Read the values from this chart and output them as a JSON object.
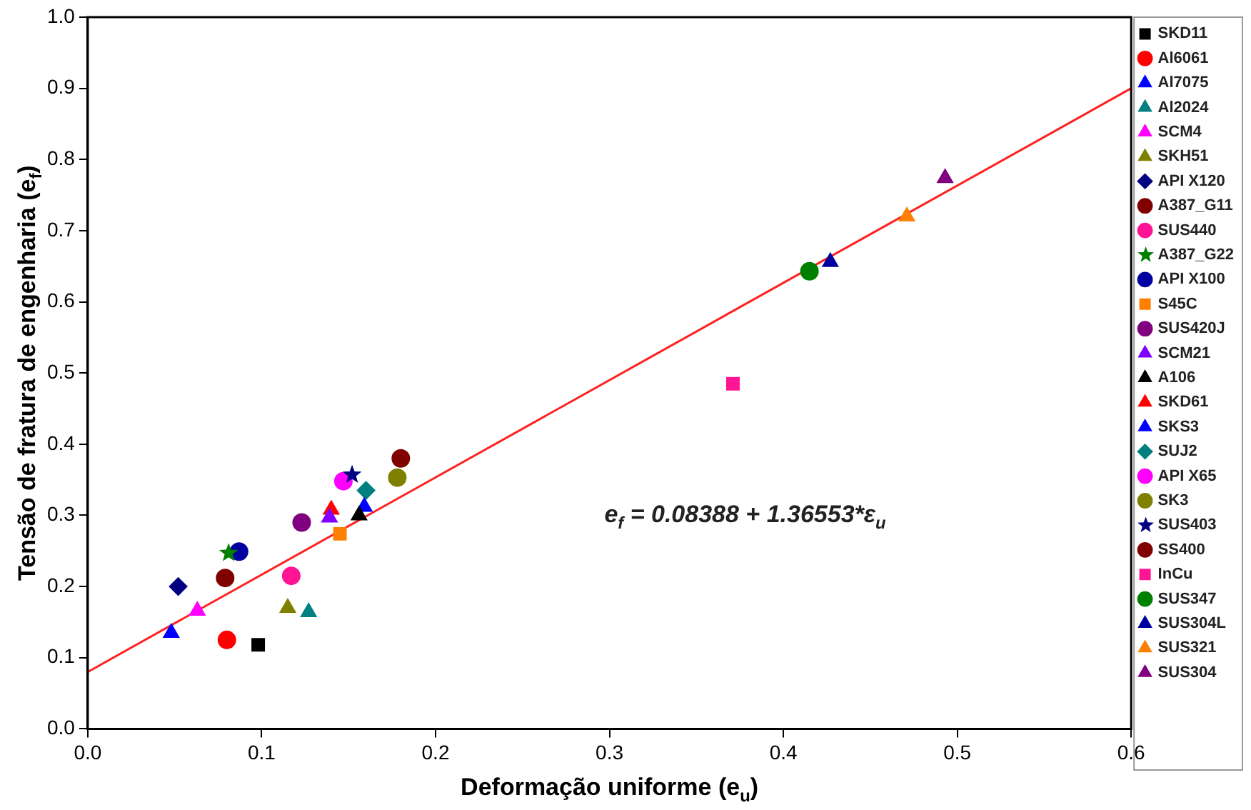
{
  "chart_data": {
    "type": "scatter",
    "xlabel": "Deformação uniforme (e$_{u}$)",
    "ylabel": "Tensão de fratura de engenharia (e$_{f}$)",
    "xlim": [
      0,
      0.6
    ],
    "xticks": [
      {
        "value": 0,
        "label": "0.0"
      },
      0.1,
      0.2,
      0.3,
      0.4,
      0.5,
      0.6
    ],
    "ylim": [
      0,
      1
    ],
    "yticks": [
      {
        "value": 0,
        "label": "0.0"
      },
      0.1,
      0.2,
      0.3,
      0.4,
      0.5,
      0.6,
      0.7,
      0.8,
      0.9,
      {
        "value": 1,
        "label": "1.0"
      }
    ],
    "grid": false,
    "legend": "right",
    "annotations": [
      "e$_{f}$ = 0.08388 + 1.36553*ε$_{u}$"
    ],
    "series": [
      {
        "name": "SKD11",
        "color": "#000000",
        "marker": "square",
        "x": [
          0.098
        ],
        "values": [
          0.118
        ]
      },
      {
        "name": "Al6061",
        "color": "#ff0000",
        "marker": "circle",
        "x": [
          0.08
        ],
        "values": [
          0.125
        ]
      },
      {
        "name": "Al7075",
        "color": "#0000ff",
        "marker": "triangle",
        "x": [
          0.048
        ],
        "values": [
          0.135
        ]
      },
      {
        "name": "Al2024",
        "color": "#008080",
        "marker": "triangle",
        "x": [
          0.127
        ],
        "values": [
          0.164
        ]
      },
      {
        "name": "SCM4",
        "color": "#ff00ff",
        "marker": "triangle",
        "x": [
          0.063
        ],
        "values": [
          0.166
        ]
      },
      {
        "name": "SKH51",
        "color": "#808000",
        "marker": "triangle",
        "x": [
          0.115
        ],
        "values": [
          0.17
        ]
      },
      {
        "name": "API X120",
        "color": "#000080",
        "marker": "diamond",
        "x": [
          0.052
        ],
        "values": [
          0.2
        ]
      },
      {
        "name": "A387_G11",
        "color": "#800000",
        "marker": "circle",
        "x": [
          0.079
        ],
        "values": [
          0.212
        ]
      },
      {
        "name": "SUS440",
        "color": "#ff1493",
        "marker": "circle",
        "x": [
          0.117
        ],
        "values": [
          0.215
        ]
      },
      {
        "name": "A387_G22",
        "color": "#008000",
        "marker": "star",
        "x": [
          0.081
        ],
        "values": [
          0.247
        ]
      },
      {
        "name": "API X100",
        "color": "#0000a0",
        "marker": "circle",
        "x": [
          0.087
        ],
        "values": [
          0.249
        ]
      },
      {
        "name": "S45C",
        "color": "#ff8000",
        "marker": "square",
        "x": [
          0.145
        ],
        "values": [
          0.274
        ]
      },
      {
        "name": "SUS420J",
        "color": "#800080",
        "marker": "circle",
        "x": [
          0.123
        ],
        "values": [
          0.29
        ]
      },
      {
        "name": "SCM21",
        "color": "#8000ff",
        "marker": "triangle",
        "x": [
          0.139
        ],
        "values": [
          0.297
        ]
      },
      {
        "name": "A106",
        "color": "#000000",
        "marker": "triangle",
        "x": [
          0.156
        ],
        "values": [
          0.3
        ]
      },
      {
        "name": "SKD61",
        "color": "#ff0000",
        "marker": "triangle",
        "x": [
          0.14
        ],
        "values": [
          0.308
        ]
      },
      {
        "name": "SKS3",
        "color": "#0000ff",
        "marker": "triangle",
        "x": [
          0.159
        ],
        "values": [
          0.312
        ]
      },
      {
        "name": "SUJ2",
        "color": "#008080",
        "marker": "diamond",
        "x": [
          0.16
        ],
        "values": [
          0.335
        ]
      },
      {
        "name": "API X65",
        "color": "#ff00ff",
        "marker": "circle",
        "x": [
          0.147
        ],
        "values": [
          0.348
        ]
      },
      {
        "name": "SK3",
        "color": "#808000",
        "marker": "circle",
        "x": [
          0.178
        ],
        "values": [
          0.353
        ]
      },
      {
        "name": "SUS403",
        "color": "#000080",
        "marker": "star",
        "x": [
          0.152
        ],
        "values": [
          0.357
        ]
      },
      {
        "name": "SS400",
        "color": "#800000",
        "marker": "circle",
        "x": [
          0.18
        ],
        "values": [
          0.38
        ]
      },
      {
        "name": "InCu",
        "color": "#ff1493",
        "marker": "square",
        "x": [
          0.371
        ],
        "values": [
          0.485
        ]
      },
      {
        "name": "SUS347",
        "color": "#008000",
        "marker": "circle",
        "x": [
          0.415
        ],
        "values": [
          0.643
        ]
      },
      {
        "name": "SUS304L",
        "color": "#0000a0",
        "marker": "triangle",
        "x": [
          0.427
        ],
        "values": [
          0.656
        ]
      },
      {
        "name": "SUS321",
        "color": "#ff8000",
        "marker": "triangle",
        "x": [
          0.471
        ],
        "values": [
          0.72
        ]
      },
      {
        "name": "SUS304",
        "color": "#800080",
        "marker": "triangle",
        "x": [
          0.493
        ],
        "values": [
          0.774
        ]
      },
      {
        "type": "line",
        "color": "#ff2020",
        "marker": "none",
        "line_style": "solid",
        "x": [
          0,
          0.6
        ],
        "values": [
          0.08,
          0.9
        ]
      }
    ]
  }
}
